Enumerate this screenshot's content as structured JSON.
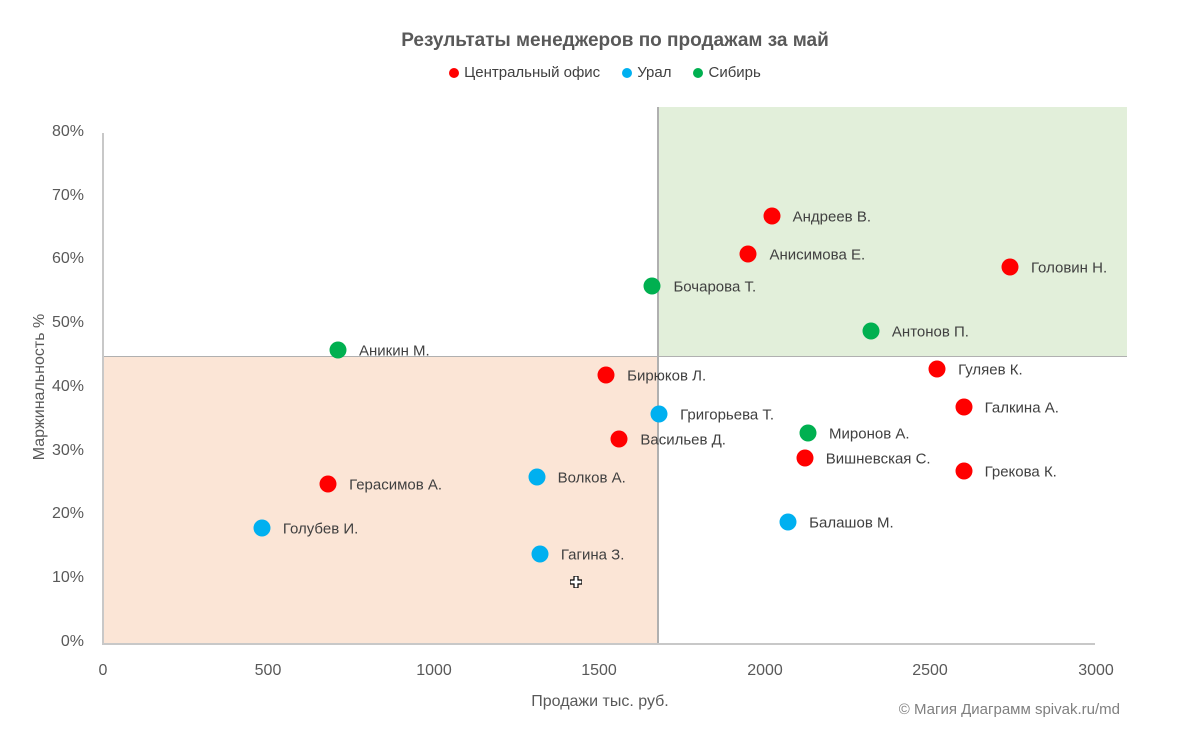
{
  "chart": {
    "title": "Результаты менеджеров по продажам за май",
    "legend": [
      {
        "label": "Центральный офис",
        "color": "#ff0000"
      },
      {
        "label": "Урал",
        "color": "#00b0f0"
      },
      {
        "label": "Сибирь",
        "color": "#00b050"
      }
    ],
    "x_axis_label": "Продажи тыс. руб.",
    "y_axis_label": "Маржинальность %",
    "x_ticks": [
      "0",
      "500",
      "1000",
      "1500",
      "2000",
      "2500",
      "3000"
    ],
    "y_ticks": [
      "80%",
      "70%",
      "60%",
      "50%",
      "40%",
      "30%",
      "20%",
      "10%",
      "0%"
    ],
    "credit": "© Магия Диаграмм spivak.ru/md"
  },
  "chart_data": {
    "type": "scatter",
    "title": "Результаты менеджеров по продажам за май",
    "xlabel": "Продажи тыс. руб.",
    "ylabel": "Маржинальность %",
    "xlim": [
      0,
      3000
    ],
    "ylim": [
      0,
      80
    ],
    "x_ticks": [
      0,
      500,
      1000,
      1500,
      2000,
      2500,
      3000
    ],
    "y_ticks": [
      0,
      10,
      20,
      30,
      40,
      50,
      60,
      70,
      80
    ],
    "y_unit": "%",
    "grid": false,
    "legend_position": "top",
    "thresholds": {
      "x": 1680,
      "y": 45
    },
    "zones": [
      {
        "name": "high-sales-high-margin",
        "x": [
          1680,
          3000
        ],
        "y": [
          45,
          80
        ],
        "color": "#e2efda"
      },
      {
        "name": "low-sales-low-margin",
        "x": [
          0,
          1680
        ],
        "y": [
          0,
          45
        ],
        "color": "#fbe5d6"
      }
    ],
    "series": [
      {
        "name": "Центральный офис",
        "color": "#ff0000",
        "points": [
          {
            "label": "Андреев В.",
            "x": 2020,
            "y": 67
          },
          {
            "label": "Анисимова Е.",
            "x": 1950,
            "y": 61
          },
          {
            "label": "Головин Н.",
            "x": 2740,
            "y": 59
          },
          {
            "label": "Гуляев К.",
            "x": 2520,
            "y": 43
          },
          {
            "label": "Бирюков Л.",
            "x": 1520,
            "y": 42
          },
          {
            "label": "Галкина А.",
            "x": 2600,
            "y": 37
          },
          {
            "label": "Васильев Д.",
            "x": 1560,
            "y": 32
          },
          {
            "label": "Вишневская С.",
            "x": 2120,
            "y": 29
          },
          {
            "label": "Грекова К.",
            "x": 2600,
            "y": 27
          },
          {
            "label": "Герасимов А.",
            "x": 680,
            "y": 25
          }
        ]
      },
      {
        "name": "Урал",
        "color": "#00b0f0",
        "points": [
          {
            "label": "Григорьева Т.",
            "x": 1680,
            "y": 36
          },
          {
            "label": "Волков А.",
            "x": 1310,
            "y": 26
          },
          {
            "label": "Балашов М.",
            "x": 2070,
            "y": 19
          },
          {
            "label": "Голубев И.",
            "x": 480,
            "y": 18
          },
          {
            "label": "Гагина З.",
            "x": 1320,
            "y": 14
          }
        ]
      },
      {
        "name": "Сибирь",
        "color": "#00b050",
        "points": [
          {
            "label": "Бочарова Т.",
            "x": 1660,
            "y": 56
          },
          {
            "label": "Антонов П.",
            "x": 2320,
            "y": 49
          },
          {
            "label": "Аникин М.",
            "x": 710,
            "y": 46
          },
          {
            "label": "Миронов А.",
            "x": 2130,
            "y": 33
          }
        ]
      }
    ]
  }
}
